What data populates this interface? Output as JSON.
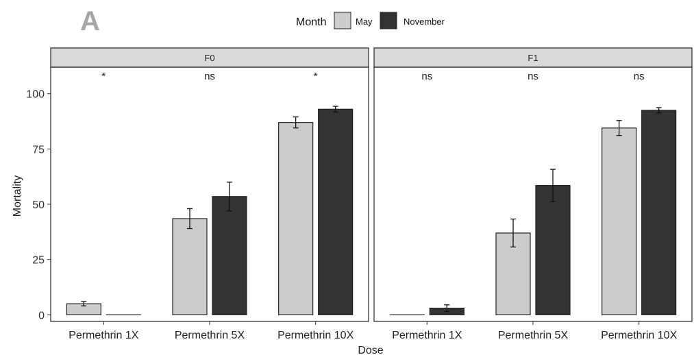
{
  "figure": {
    "panel_letter": "A",
    "legend_title": "Month",
    "legend": [
      {
        "label": "May",
        "color": "#cccccc"
      },
      {
        "label": "November",
        "color": "#333333"
      }
    ],
    "xlabel": "Dose",
    "ylabel": "Mortality"
  },
  "chart_data": {
    "type": "bar",
    "ylim": [
      -3,
      112
    ],
    "yticks": [
      0,
      25,
      50,
      75,
      100
    ],
    "categories": [
      "Permethrin 1X",
      "Permethrin 5X",
      "Permethrin 10X"
    ],
    "grid": false,
    "legend_position": "top",
    "panels": [
      {
        "label": "F0",
        "significance": [
          "*",
          "ns",
          "*"
        ],
        "series": [
          {
            "name": "May",
            "color": "#cccccc",
            "values": [
              5,
              43.5,
              87
            ],
            "errors": [
              1,
              4.5,
              2.5
            ]
          },
          {
            "name": "November",
            "color": "#333333",
            "values": [
              0,
              53.5,
              93
            ],
            "errors": [
              0,
              6.5,
              1.3
            ]
          }
        ]
      },
      {
        "label": "F1",
        "significance": [
          "ns",
          "ns",
          "ns"
        ],
        "series": [
          {
            "name": "May",
            "color": "#cccccc",
            "values": [
              0,
              37,
              84.5
            ],
            "errors": [
              0,
              6.3,
              3.4
            ]
          },
          {
            "name": "November",
            "color": "#333333",
            "values": [
              3,
              58.5,
              92.5
            ],
            "errors": [
              1.5,
              7.3,
              1.2
            ]
          }
        ]
      }
    ]
  }
}
